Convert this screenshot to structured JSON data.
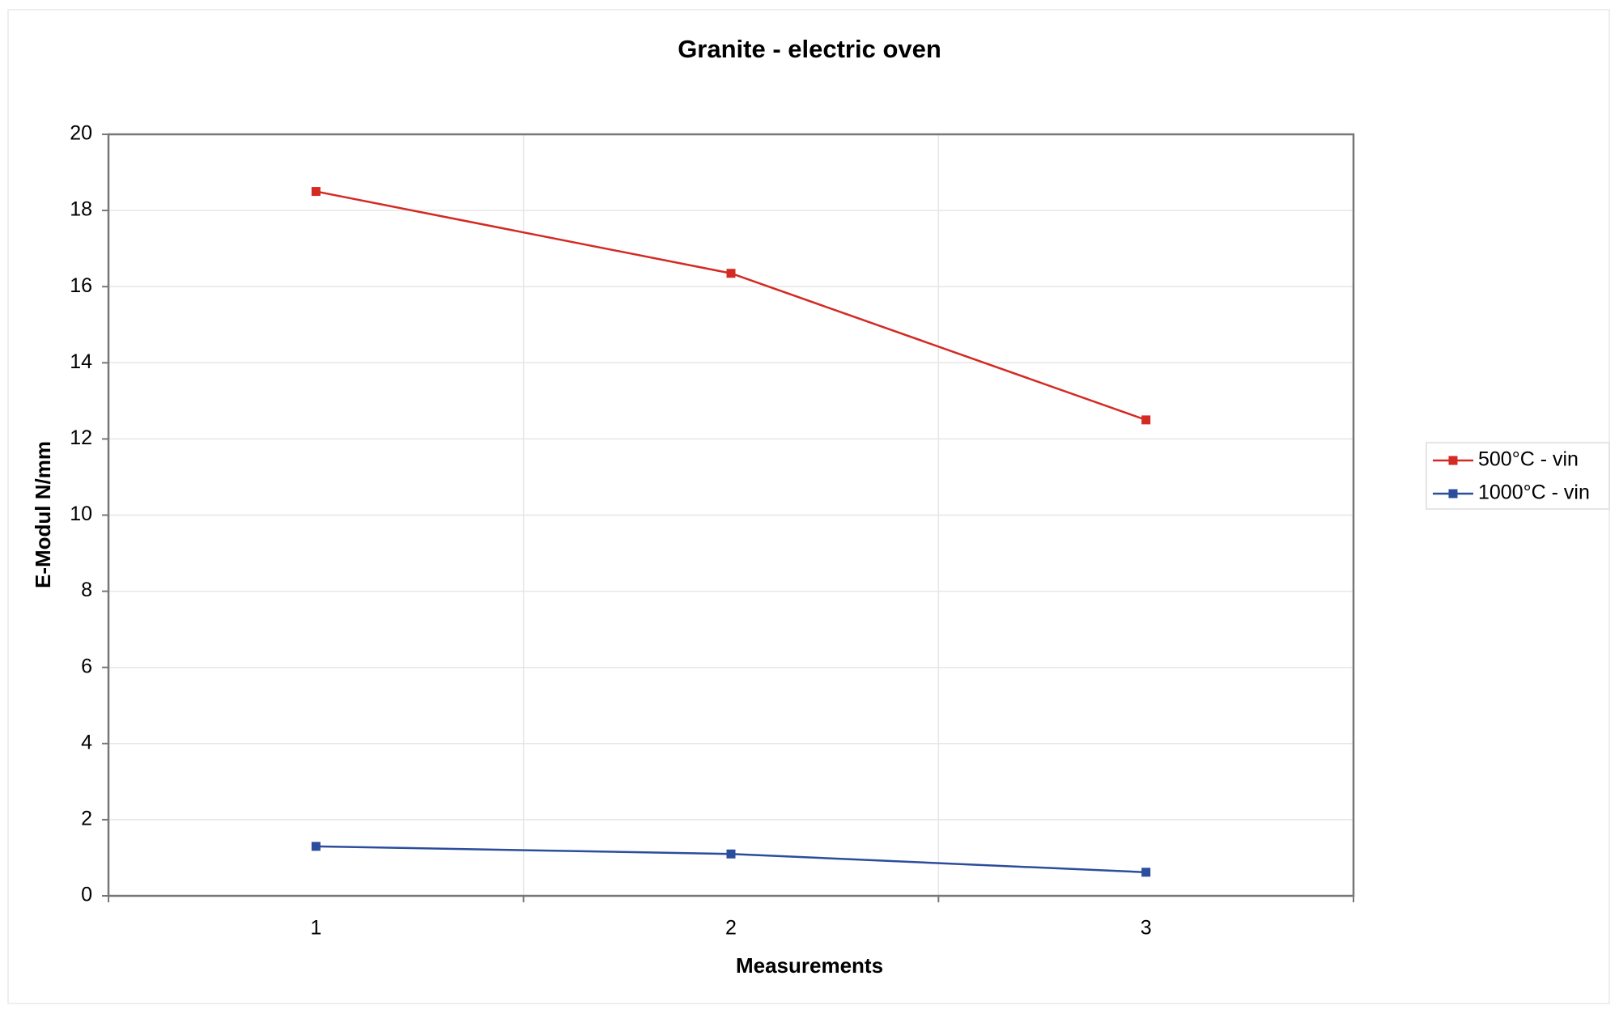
{
  "chart_data": {
    "type": "line",
    "title": "Granite - electric oven",
    "x_label": "Measurements",
    "y_label": "E-Modul N/mm",
    "categories": [
      "1",
      "2",
      "3"
    ],
    "series": [
      {
        "name": "500°C - vin",
        "color": "#d42a24",
        "values": [
          18.5,
          16.35,
          12.5
        ]
      },
      {
        "name": "1000°C - vin",
        "color": "#2a4d9c",
        "values": [
          1.3,
          1.1,
          0.62
        ]
      }
    ],
    "ylim": [
      0,
      20
    ],
    "yticks": [
      0,
      2,
      4,
      6,
      8,
      10,
      12,
      14,
      16,
      18,
      20
    ],
    "grid": true,
    "legend": "right"
  }
}
